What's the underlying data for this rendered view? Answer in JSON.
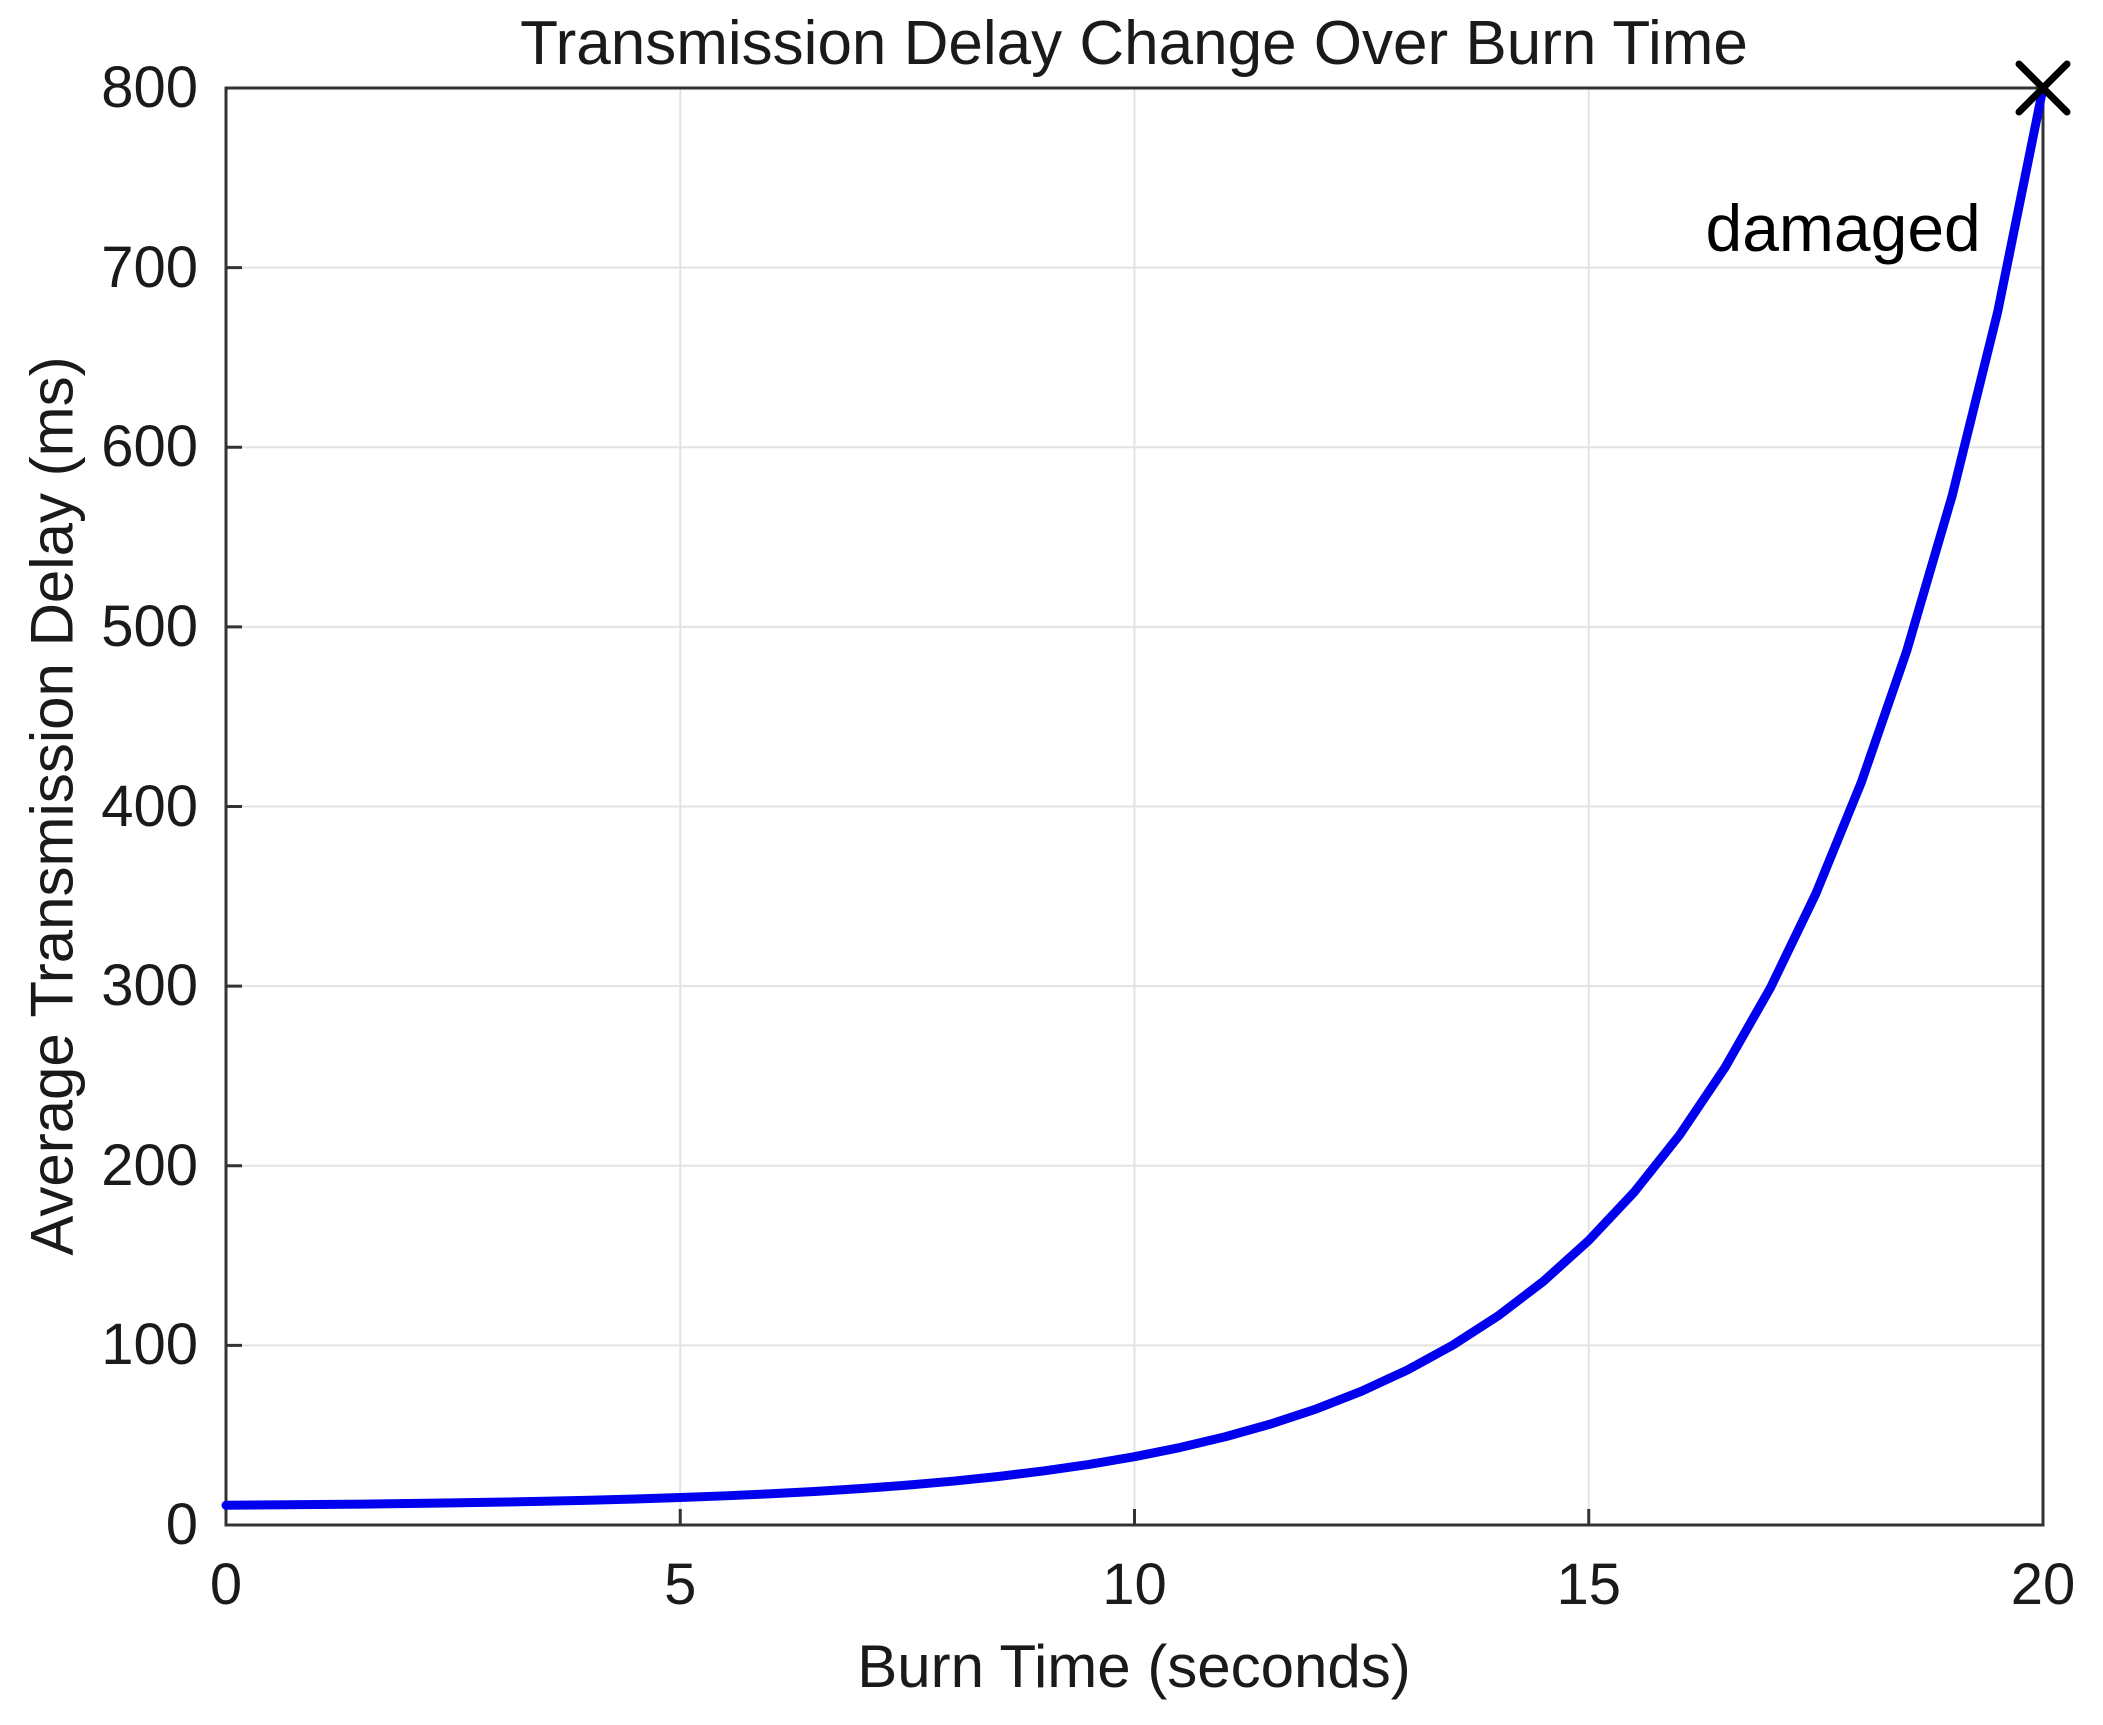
{
  "figure": {
    "background": "#ffffff"
  },
  "chart_data": {
    "type": "line",
    "title": "Transmission Delay Change Over Burn Time",
    "xlabel": "Burn Time (seconds)",
    "ylabel": "Average Transmission Delay (ms)",
    "xlim": [
      0,
      20
    ],
    "ylim": [
      0,
      800
    ],
    "xticks": [
      0,
      5,
      10,
      15,
      20
    ],
    "yticks": [
      0,
      100,
      200,
      300,
      400,
      500,
      600,
      700,
      800
    ],
    "grid": true,
    "legend": "none",
    "axis_color": "#333333",
    "grid_color": "#e3e3e3",
    "text_color": "#1a1a1a",
    "series": [
      {
        "name": "average-transmission-delay",
        "color": "#0000ee",
        "line_width": 9,
        "x": [
          0,
          0.5,
          1,
          1.5,
          2,
          2.5,
          3,
          3.5,
          4,
          4.5,
          5,
          5.5,
          6,
          6.5,
          7,
          7.5,
          8,
          8.5,
          9,
          9.5,
          10,
          10.5,
          11,
          11.5,
          12,
          12.5,
          13,
          13.5,
          14,
          14.5,
          15,
          15.5,
          16,
          16.5,
          17,
          17.5,
          18,
          18.5,
          19,
          19.5,
          20
        ],
        "y": [
          11.0,
          11.18,
          11.4,
          11.65,
          11.95,
          12.3,
          12.72,
          13.21,
          13.79,
          14.48,
          15.29,
          16.25,
          17.39,
          18.73,
          20.31,
          22.18,
          24.39,
          27.0,
          30.09,
          33.73,
          38.03,
          43.12,
          49.12,
          56.22,
          64.6,
          74.51,
          86.2,
          100.02,
          116.34,
          135.63,
          158.41,
          185.32,
          217.12,
          254.69,
          299.07,
          351.5,
          413.43,
          486.6,
          573.0,
          675.1,
          800
        ]
      }
    ],
    "annotations": [
      {
        "text": "damaged",
        "x": 17.8,
        "y": 722,
        "color": "#000000"
      }
    ],
    "markers": [
      {
        "shape": "x",
        "x": 20,
        "y": 800,
        "size": 48,
        "stroke_width": 7,
        "color": "#000000"
      }
    ]
  }
}
